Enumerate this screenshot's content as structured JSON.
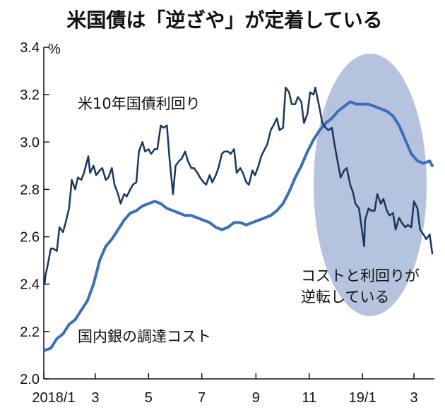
{
  "chart_data": {
    "type": "line",
    "title": "米国債は「逆ざや」が定着している",
    "y_unit": "%",
    "ylim": [
      2.0,
      3.4
    ],
    "y_ticks": [
      "2.0",
      "2.2",
      "2.4",
      "2.6",
      "2.8",
      "3.0",
      "3.2",
      "3.4"
    ],
    "x_range": [
      "2018-01-01",
      "2019-03-22"
    ],
    "x_ticks": [
      {
        "label": "2018/1",
        "date": "2018-01-01"
      },
      {
        "label": "3",
        "date": "2018-03-01"
      },
      {
        "label": "5",
        "date": "2018-05-01"
      },
      {
        "label": "7",
        "date": "2018-07-01"
      },
      {
        "label": "9",
        "date": "2018-09-01"
      },
      {
        "label": "11",
        "date": "2018-11-01"
      },
      {
        "label": "19/1",
        "date": "2019-01-01"
      },
      {
        "label": "3",
        "date": "2019-03-01"
      }
    ],
    "grid": false,
    "series": [
      {
        "name": "米10年国債利回り",
        "color": "#17375e",
        "points": [
          [
            "2018-01-02",
            2.4
          ],
          [
            "2018-01-03",
            2.44
          ],
          [
            "2018-01-05",
            2.47
          ],
          [
            "2018-01-09",
            2.55
          ],
          [
            "2018-01-12",
            2.55
          ],
          [
            "2018-01-16",
            2.54
          ],
          [
            "2018-01-19",
            2.64
          ],
          [
            "2018-01-23",
            2.62
          ],
          [
            "2018-01-26",
            2.66
          ],
          [
            "2018-01-30",
            2.72
          ],
          [
            "2018-02-02",
            2.84
          ],
          [
            "2018-02-06",
            2.8
          ],
          [
            "2018-02-09",
            2.85
          ],
          [
            "2018-02-13",
            2.84
          ],
          [
            "2018-02-16",
            2.87
          ],
          [
            "2018-02-21",
            2.94
          ],
          [
            "2018-02-23",
            2.87
          ],
          [
            "2018-02-27",
            2.9
          ],
          [
            "2018-03-02",
            2.86
          ],
          [
            "2018-03-06",
            2.88
          ],
          [
            "2018-03-09",
            2.89
          ],
          [
            "2018-03-13",
            2.84
          ],
          [
            "2018-03-16",
            2.85
          ],
          [
            "2018-03-20",
            2.89
          ],
          [
            "2018-03-23",
            2.82
          ],
          [
            "2018-03-27",
            2.78
          ],
          [
            "2018-03-30",
            2.74
          ],
          [
            "2018-04-03",
            2.78
          ],
          [
            "2018-04-06",
            2.77
          ],
          [
            "2018-04-10",
            2.8
          ],
          [
            "2018-04-13",
            2.82
          ],
          [
            "2018-04-17",
            2.83
          ],
          [
            "2018-04-20",
            2.96
          ],
          [
            "2018-04-24",
            3.0
          ],
          [
            "2018-04-27",
            2.96
          ],
          [
            "2018-05-01",
            2.97
          ],
          [
            "2018-05-04",
            2.95
          ],
          [
            "2018-05-08",
            2.97
          ],
          [
            "2018-05-11",
            2.97
          ],
          [
            "2018-05-15",
            3.07
          ],
          [
            "2018-05-18",
            3.06
          ],
          [
            "2018-05-22",
            3.07
          ],
          [
            "2018-05-25",
            2.93
          ],
          [
            "2018-05-29",
            2.78
          ],
          [
            "2018-06-01",
            2.9
          ],
          [
            "2018-06-05",
            2.92
          ],
          [
            "2018-06-08",
            2.93
          ],
          [
            "2018-06-12",
            2.96
          ],
          [
            "2018-06-15",
            2.92
          ],
          [
            "2018-06-19",
            2.89
          ],
          [
            "2018-06-22",
            2.89
          ],
          [
            "2018-06-26",
            2.87
          ],
          [
            "2018-06-29",
            2.85
          ],
          [
            "2018-07-03",
            2.83
          ],
          [
            "2018-07-06",
            2.82
          ],
          [
            "2018-07-10",
            2.86
          ],
          [
            "2018-07-13",
            2.83
          ],
          [
            "2018-07-17",
            2.86
          ],
          [
            "2018-07-20",
            2.89
          ],
          [
            "2018-07-24",
            2.95
          ],
          [
            "2018-07-27",
            2.96
          ],
          [
            "2018-07-31",
            2.96
          ],
          [
            "2018-08-03",
            2.95
          ],
          [
            "2018-08-07",
            2.97
          ],
          [
            "2018-08-10",
            2.87
          ],
          [
            "2018-08-14",
            2.89
          ],
          [
            "2018-08-17",
            2.87
          ],
          [
            "2018-08-21",
            2.83
          ],
          [
            "2018-08-24",
            2.82
          ],
          [
            "2018-08-28",
            2.88
          ],
          [
            "2018-08-31",
            2.86
          ],
          [
            "2018-09-04",
            2.9
          ],
          [
            "2018-09-07",
            2.94
          ],
          [
            "2018-09-11",
            2.97
          ],
          [
            "2018-09-14",
            2.99
          ],
          [
            "2018-09-18",
            3.05
          ],
          [
            "2018-09-21",
            3.07
          ],
          [
            "2018-09-25",
            3.1
          ],
          [
            "2018-09-28",
            3.05
          ],
          [
            "2018-10-02",
            3.06
          ],
          [
            "2018-10-05",
            3.23
          ],
          [
            "2018-10-09",
            3.21
          ],
          [
            "2018-10-12",
            3.16
          ],
          [
            "2018-10-16",
            3.16
          ],
          [
            "2018-10-19",
            3.19
          ],
          [
            "2018-10-23",
            3.17
          ],
          [
            "2018-10-26",
            3.08
          ],
          [
            "2018-10-30",
            3.12
          ],
          [
            "2018-11-02",
            3.21
          ],
          [
            "2018-11-06",
            3.2
          ],
          [
            "2018-11-08",
            3.23
          ],
          [
            "2018-11-13",
            3.14
          ],
          [
            "2018-11-16",
            3.08
          ],
          [
            "2018-11-20",
            3.06
          ],
          [
            "2018-11-23",
            3.05
          ],
          [
            "2018-11-27",
            3.06
          ],
          [
            "2018-11-30",
            2.99
          ],
          [
            "2018-12-04",
            2.91
          ],
          [
            "2018-12-07",
            2.85
          ],
          [
            "2018-12-11",
            2.88
          ],
          [
            "2018-12-14",
            2.89
          ],
          [
            "2018-12-18",
            2.82
          ],
          [
            "2018-12-21",
            2.79
          ],
          [
            "2018-12-24",
            2.74
          ],
          [
            "2018-12-28",
            2.72
          ],
          [
            "2019-01-03",
            2.56
          ],
          [
            "2019-01-04",
            2.67
          ],
          [
            "2019-01-08",
            2.72
          ],
          [
            "2019-01-11",
            2.71
          ],
          [
            "2019-01-15",
            2.71
          ],
          [
            "2019-01-18",
            2.78
          ],
          [
            "2019-01-22",
            2.74
          ],
          [
            "2019-01-25",
            2.76
          ],
          [
            "2019-01-29",
            2.71
          ],
          [
            "2019-02-01",
            2.69
          ],
          [
            "2019-02-05",
            2.7
          ],
          [
            "2019-02-08",
            2.63
          ],
          [
            "2019-02-12",
            2.68
          ],
          [
            "2019-02-15",
            2.66
          ],
          [
            "2019-02-19",
            2.64
          ],
          [
            "2019-02-22",
            2.65
          ],
          [
            "2019-02-26",
            2.64
          ],
          [
            "2019-03-01",
            2.75
          ],
          [
            "2019-03-05",
            2.72
          ],
          [
            "2019-03-08",
            2.63
          ],
          [
            "2019-03-12",
            2.61
          ],
          [
            "2019-03-15",
            2.59
          ],
          [
            "2019-03-19",
            2.61
          ],
          [
            "2019-03-22",
            2.53
          ]
        ]
      },
      {
        "name": "国内銀の調達コスト",
        "color": "#3a70b7",
        "points": [
          [
            "2018-01-02",
            2.12
          ],
          [
            "2018-01-09",
            2.13
          ],
          [
            "2018-01-16",
            2.17
          ],
          [
            "2018-01-23",
            2.19
          ],
          [
            "2018-01-30",
            2.23
          ],
          [
            "2018-02-06",
            2.25
          ],
          [
            "2018-02-13",
            2.29
          ],
          [
            "2018-02-20",
            2.33
          ],
          [
            "2018-02-27",
            2.4
          ],
          [
            "2018-03-06",
            2.5
          ],
          [
            "2018-03-13",
            2.56
          ],
          [
            "2018-03-20",
            2.59
          ],
          [
            "2018-03-27",
            2.63
          ],
          [
            "2018-04-03",
            2.67
          ],
          [
            "2018-04-10",
            2.7
          ],
          [
            "2018-04-17",
            2.71
          ],
          [
            "2018-04-24",
            2.73
          ],
          [
            "2018-05-01",
            2.74
          ],
          [
            "2018-05-08",
            2.75
          ],
          [
            "2018-05-15",
            2.74
          ],
          [
            "2018-05-22",
            2.72
          ],
          [
            "2018-05-29",
            2.71
          ],
          [
            "2018-06-05",
            2.7
          ],
          [
            "2018-06-12",
            2.69
          ],
          [
            "2018-06-19",
            2.69
          ],
          [
            "2018-06-26",
            2.68
          ],
          [
            "2018-07-03",
            2.67
          ],
          [
            "2018-07-10",
            2.66
          ],
          [
            "2018-07-17",
            2.64
          ],
          [
            "2018-07-24",
            2.63
          ],
          [
            "2018-07-31",
            2.64
          ],
          [
            "2018-08-07",
            2.66
          ],
          [
            "2018-08-14",
            2.66
          ],
          [
            "2018-08-21",
            2.65
          ],
          [
            "2018-08-28",
            2.66
          ],
          [
            "2018-09-04",
            2.67
          ],
          [
            "2018-09-11",
            2.68
          ],
          [
            "2018-09-18",
            2.69
          ],
          [
            "2018-09-25",
            2.71
          ],
          [
            "2018-10-02",
            2.74
          ],
          [
            "2018-10-09",
            2.79
          ],
          [
            "2018-10-16",
            2.85
          ],
          [
            "2018-10-23",
            2.9
          ],
          [
            "2018-10-30",
            2.96
          ],
          [
            "2018-11-06",
            3.01
          ],
          [
            "2018-11-13",
            3.05
          ],
          [
            "2018-11-20",
            3.08
          ],
          [
            "2018-11-27",
            3.1
          ],
          [
            "2018-12-04",
            3.13
          ],
          [
            "2018-12-11",
            3.15
          ],
          [
            "2018-12-18",
            3.17
          ],
          [
            "2018-12-25",
            3.16
          ],
          [
            "2019-01-01",
            3.16
          ],
          [
            "2019-01-08",
            3.16
          ],
          [
            "2019-01-15",
            3.15
          ],
          [
            "2019-01-22",
            3.14
          ],
          [
            "2019-01-29",
            3.13
          ],
          [
            "2019-02-05",
            3.11
          ],
          [
            "2019-02-12",
            3.07
          ],
          [
            "2019-02-19",
            3.01
          ],
          [
            "2019-02-26",
            2.95
          ],
          [
            "2019-03-05",
            2.92
          ],
          [
            "2019-03-12",
            2.91
          ],
          [
            "2019-03-19",
            2.92
          ],
          [
            "2019-03-22",
            2.9
          ]
        ]
      }
    ],
    "series_labels": [
      "米10年国債利回り",
      "国内銀の調達コスト"
    ],
    "annotation": {
      "lines": [
        "コストと利回りが",
        "逆転している"
      ],
      "highlight_color": "#a9b9d8"
    }
  }
}
